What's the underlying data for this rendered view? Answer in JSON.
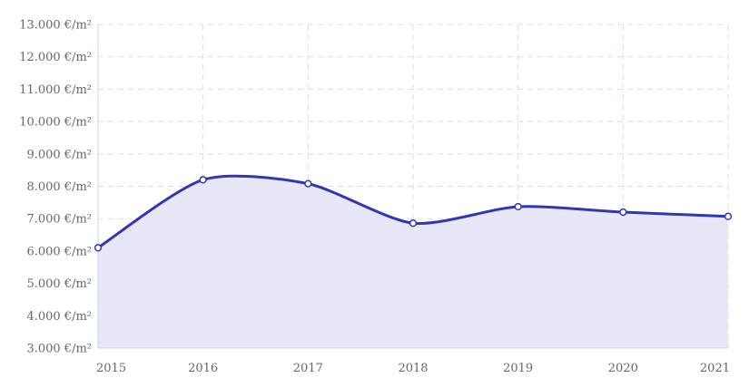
{
  "chart_data": {
    "type": "area",
    "title": "",
    "xlabel": "",
    "ylabel": "",
    "x": [
      "2015",
      "2016",
      "2017",
      "2018",
      "2019",
      "2020",
      "2021"
    ],
    "series": [
      {
        "values": [
          6100,
          8200,
          8080,
          6860,
          7370,
          7200,
          7070
        ]
      }
    ],
    "ylim": [
      3000,
      13000
    ],
    "ytick_step": 1000,
    "ytick_labels": [
      "3.000 €/m²",
      "4.000 €/m²",
      "5.000 €/m²",
      "6.000 €/m²",
      "7.000 €/m²",
      "8.000 €/m²",
      "9.000 €/m²",
      "10.000 €/m²",
      "11.000 €/m²",
      "12.000 €/m²",
      "13.000 €/m²"
    ],
    "grid": true,
    "legend": "none",
    "colors": {
      "line": "#3137B3",
      "fill": "#E7E7F7",
      "grid": "#D5DDF3",
      "axis": "#C8D4F0",
      "text": "#666666",
      "marker_fill": "#FFFFFF"
    }
  }
}
